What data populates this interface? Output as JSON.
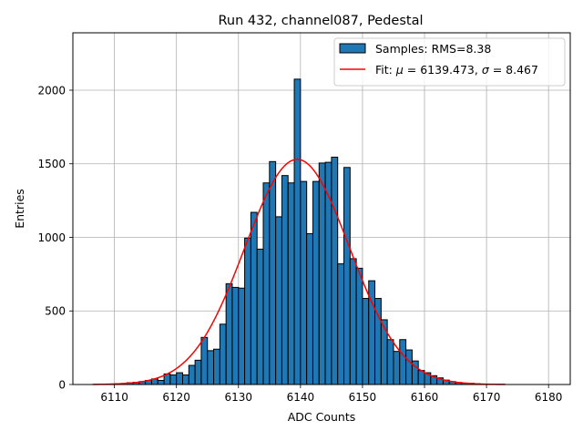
{
  "chart_data": {
    "type": "bar",
    "title": "Run 432, channel087, Pedestal",
    "xlabel": "ADC Counts",
    "ylabel": "Entries",
    "xlim": [
      6103.3,
      6183.5
    ],
    "ylim": [
      0,
      2390
    ],
    "xticks": [
      6110,
      6120,
      6130,
      6140,
      6150,
      6160,
      6170,
      6180
    ],
    "yticks": [
      0,
      500,
      1000,
      1500,
      2000
    ],
    "grid": true,
    "legend_position": "top-right",
    "bin_width": 1,
    "histogram": {
      "name": "Samples: RMS=8.38",
      "color": "#1f77b4",
      "edge_color": "#000000",
      "x": [
        6107,
        6108,
        6109,
        6110,
        6111,
        6112,
        6113,
        6114,
        6115,
        6116,
        6117,
        6118,
        6119,
        6120,
        6121,
        6122,
        6123,
        6124,
        6125,
        6126,
        6127,
        6128,
        6129,
        6130,
        6131,
        6132,
        6133,
        6134,
        6135,
        6136,
        6137,
        6138,
        6139,
        6140,
        6141,
        6142,
        6143,
        6144,
        6145,
        6146,
        6147,
        6148,
        6149,
        6150,
        6151,
        6152,
        6153,
        6154,
        6155,
        6156,
        6157,
        6158,
        6159,
        6160,
        6161,
        6162,
        6163,
        6164,
        6165,
        6166,
        6167,
        6168,
        6169,
        6170,
        6171,
        6172
      ],
      "values": [
        1,
        2,
        3,
        5,
        7,
        12,
        15,
        20,
        28,
        38,
        28,
        72,
        65,
        80,
        65,
        130,
        165,
        320,
        230,
        240,
        410,
        685,
        660,
        655,
        995,
        1170,
        920,
        1370,
        1515,
        1140,
        1420,
        1370,
        2075,
        1380,
        1025,
        1380,
        1505,
        1510,
        1545,
        820,
        1475,
        855,
        790,
        585,
        705,
        585,
        440,
        305,
        225,
        305,
        235,
        160,
        95,
        80,
        60,
        45,
        30,
        20,
        14,
        10,
        8,
        5,
        3,
        2,
        1,
        1
      ]
    },
    "fit": {
      "name": "Fit: μ = 6139.473, σ = 8.467",
      "name_parts": [
        "Fit: ",
        "μ",
        " = 6139.473, ",
        "σ",
        " = 8.467"
      ],
      "color": "#ff0000",
      "mu": 6139.473,
      "sigma": 8.467,
      "amplitude": 1530,
      "range": [
        6106.5,
        6173
      ]
    }
  }
}
